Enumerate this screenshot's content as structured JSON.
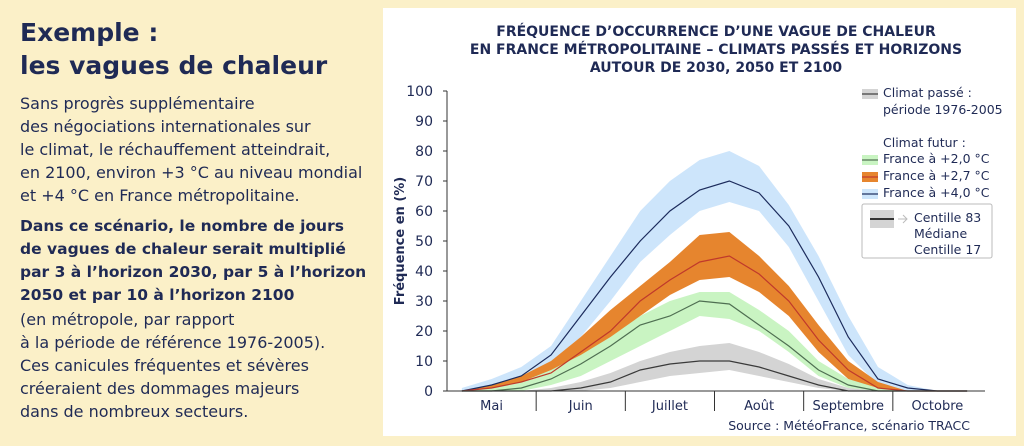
{
  "panel": {
    "heading": [
      "Exemple :",
      "les vagues de chaleur"
    ],
    "paragraph1": [
      "Sans progrès supplémentaire",
      "des négociations internationales sur",
      "le climat, le réchauffement atteindrait,",
      "en 2100, environ +3 °C au niveau mondial",
      "et +4 °C en France métropolitaine."
    ],
    "paragraph2": [
      "Dans ce scénario, le nombre de jours",
      "de vagues de chaleur serait multiplié",
      "par 3 à l’horizon 2030, par 5 à l’horizon",
      "2050  et par 10 à l’horizon 2100"
    ],
    "paragraph3": [
      "(en métropole, par rapport",
      "à la période de référence 1976-2005).",
      "Ces canicules fréquentes et sévères",
      "créeraient des dommages majeurs",
      "dans de nombreux secteurs."
    ]
  },
  "chart_data": {
    "type": "band",
    "title": [
      "FRÉQUENCE D’OCCURRENCE D’UNE VAGUE DE CHALEUR",
      "EN FRANCE MÉTROPOLITAINE – CLIMATS PASSÉS ET HORIZONS",
      "AUTOUR DE 2030, 2050 ET 2100"
    ],
    "y_label": "Fréquence en (%)",
    "source": "Source : MétéoFrance, scénario TRACC",
    "categories": [
      null,
      "Mai",
      null,
      null,
      "Juin",
      null,
      null,
      "Juillet",
      null,
      null,
      "Août",
      null,
      null,
      "Septembre",
      null,
      null,
      "Octobre",
      null
    ],
    "ylim": [
      0,
      100
    ],
    "yticks": [
      0,
      10,
      20,
      30,
      40,
      50,
      60,
      70,
      80,
      90,
      100
    ],
    "legend_heading": "Climat futur :",
    "legend_key": [
      "Centille 83",
      "Médiane",
      "Centille 17"
    ],
    "series": [
      {
        "name": "Climat passé : période 1976-2005",
        "color": "#d4d4d4",
        "line_color": "#3a3a3a",
        "values": [
          0,
          0,
          0,
          0,
          1,
          3,
          7,
          9,
          10,
          10,
          8,
          5,
          2,
          0,
          0,
          0,
          0,
          0
        ],
        "upper": [
          0,
          0,
          0,
          1,
          3,
          6,
          10,
          13,
          15,
          16,
          13,
          9,
          4,
          1,
          0,
          0,
          0,
          0
        ],
        "lower": [
          0,
          0,
          0,
          0,
          0,
          1,
          3,
          5,
          6,
          7,
          5,
          3,
          1,
          0,
          0,
          0,
          0,
          0
        ]
      },
      {
        "name": "France à +2,0 °C",
        "color": "#c9f4c2",
        "line_color": "#4f6f52",
        "values": [
          0,
          0,
          1,
          4,
          9,
          15,
          22,
          25,
          30,
          29,
          22,
          15,
          7,
          2,
          0,
          0,
          0,
          0
        ],
        "upper": [
          0,
          1,
          3,
          7,
          12,
          18,
          25,
          30,
          33,
          33,
          27,
          20,
          10,
          4,
          1,
          0,
          0,
          0
        ],
        "lower": [
          0,
          0,
          0,
          2,
          5,
          10,
          15,
          20,
          25,
          24,
          20,
          13,
          5,
          1,
          0,
          0,
          0,
          0
        ]
      },
      {
        "name": "France à +2,7 °C",
        "color": "#e6852e",
        "line_color": "#c0392b",
        "values": [
          0,
          1,
          3,
          6,
          13,
          20,
          30,
          37,
          43,
          45,
          39,
          30,
          17,
          7,
          1,
          0,
          0,
          0
        ],
        "upper": [
          0,
          2,
          5,
          10,
          18,
          27,
          35,
          43,
          52,
          53,
          45,
          35,
          22,
          10,
          3,
          0,
          0,
          0
        ],
        "lower": [
          0,
          0,
          1,
          3,
          8,
          15,
          25,
          32,
          37,
          38,
          33,
          25,
          13,
          4,
          0,
          0,
          0,
          0
        ]
      },
      {
        "name": "France à +4,0 °C",
        "color": "#cde5fb",
        "line_color": "#1c2b5c",
        "values": [
          0,
          2,
          5,
          12,
          25,
          38,
          50,
          60,
          67,
          70,
          66,
          55,
          38,
          18,
          4,
          1,
          0,
          0
        ],
        "upper": [
          1,
          4,
          8,
          15,
          30,
          45,
          60,
          70,
          77,
          80,
          75,
          62,
          45,
          25,
          8,
          2,
          0,
          0
        ],
        "lower": [
          0,
          1,
          3,
          8,
          18,
          30,
          43,
          52,
          60,
          63,
          60,
          48,
          30,
          12,
          2,
          0,
          0,
          0
        ]
      }
    ]
  }
}
